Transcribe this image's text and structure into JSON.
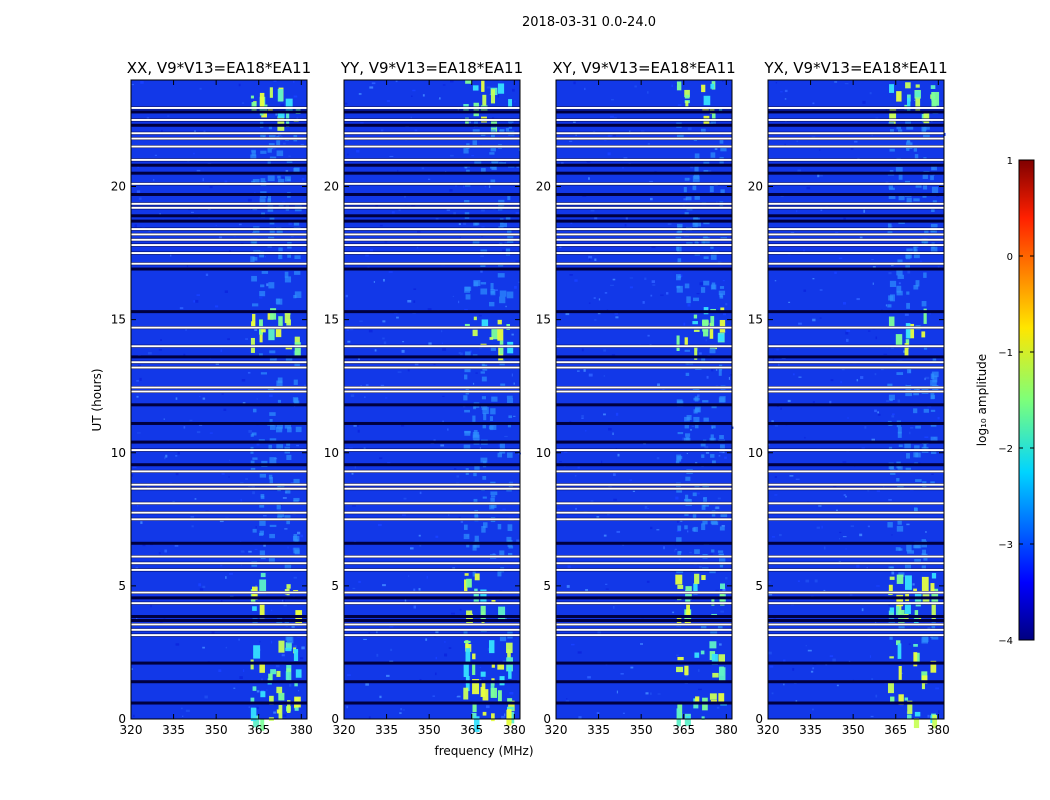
{
  "chart_data": {
    "type": "heatmap",
    "suptitle": "2018-03-31 0.0-24.0",
    "ylabel": "UT (hours)",
    "xlabel": "frequency (MHz)",
    "xlim": [
      320,
      382
    ],
    "ylim": [
      0,
      24
    ],
    "xticks": [
      "320",
      "335",
      "350",
      "365",
      "380"
    ],
    "yticks": [
      "0",
      "5",
      "10",
      "15",
      "20"
    ],
    "panels": [
      {
        "title": "XX, V9*V13=EA18*EA11",
        "id": "xx"
      },
      {
        "title": "YY, V9*V13=EA18*EA11",
        "id": "yy"
      },
      {
        "title": "XY, V9*V13=EA18*EA11",
        "id": "xy"
      },
      {
        "title": "YX, V9*V13=EA18*EA11",
        "id": "yx"
      }
    ],
    "active_band_mhz": [
      362,
      380
    ],
    "flagged_hours": [
      0.6,
      1.4,
      2.1,
      3.15,
      3.35,
      3.55,
      3.7,
      3.85,
      4.35,
      4.55,
      4.75,
      5.6,
      5.85,
      6.1,
      6.6,
      7.5,
      7.75,
      8.1,
      8.65,
      8.8,
      9.3,
      9.55,
      10.1,
      10.4,
      11.1,
      11.8,
      12.3,
      12.45,
      13.2,
      13.4,
      13.6,
      14.0,
      14.7,
      15.3,
      16.9,
      17.1,
      17.5,
      17.8,
      18.0,
      18.2,
      18.4,
      18.7,
      18.9,
      19.2,
      19.35,
      19.7,
      20.1,
      20.5,
      20.8,
      21.0,
      21.5,
      21.8,
      22.0,
      22.3,
      22.5,
      22.8,
      22.95
    ],
    "white_hours": [
      3.15,
      3.35,
      3.55,
      4.35,
      4.75,
      5.6,
      5.85,
      6.1,
      7.5,
      7.75,
      8.1,
      8.65,
      8.8,
      9.3,
      10.1,
      12.3,
      12.45,
      13.2,
      13.4,
      14.0,
      14.7,
      17.1,
      17.5,
      17.8,
      18.0,
      18.2,
      18.4,
      19.2,
      19.35,
      20.1,
      21.0,
      21.5,
      21.8,
      22.0,
      22.5,
      22.95
    ],
    "colorbar": {
      "label": "log₁₀ amplitude",
      "range": [
        -4,
        1
      ],
      "ticks": [
        "1",
        "0",
        "−1",
        "−2",
        "−3",
        "−4"
      ],
      "colormap": "jet"
    }
  }
}
